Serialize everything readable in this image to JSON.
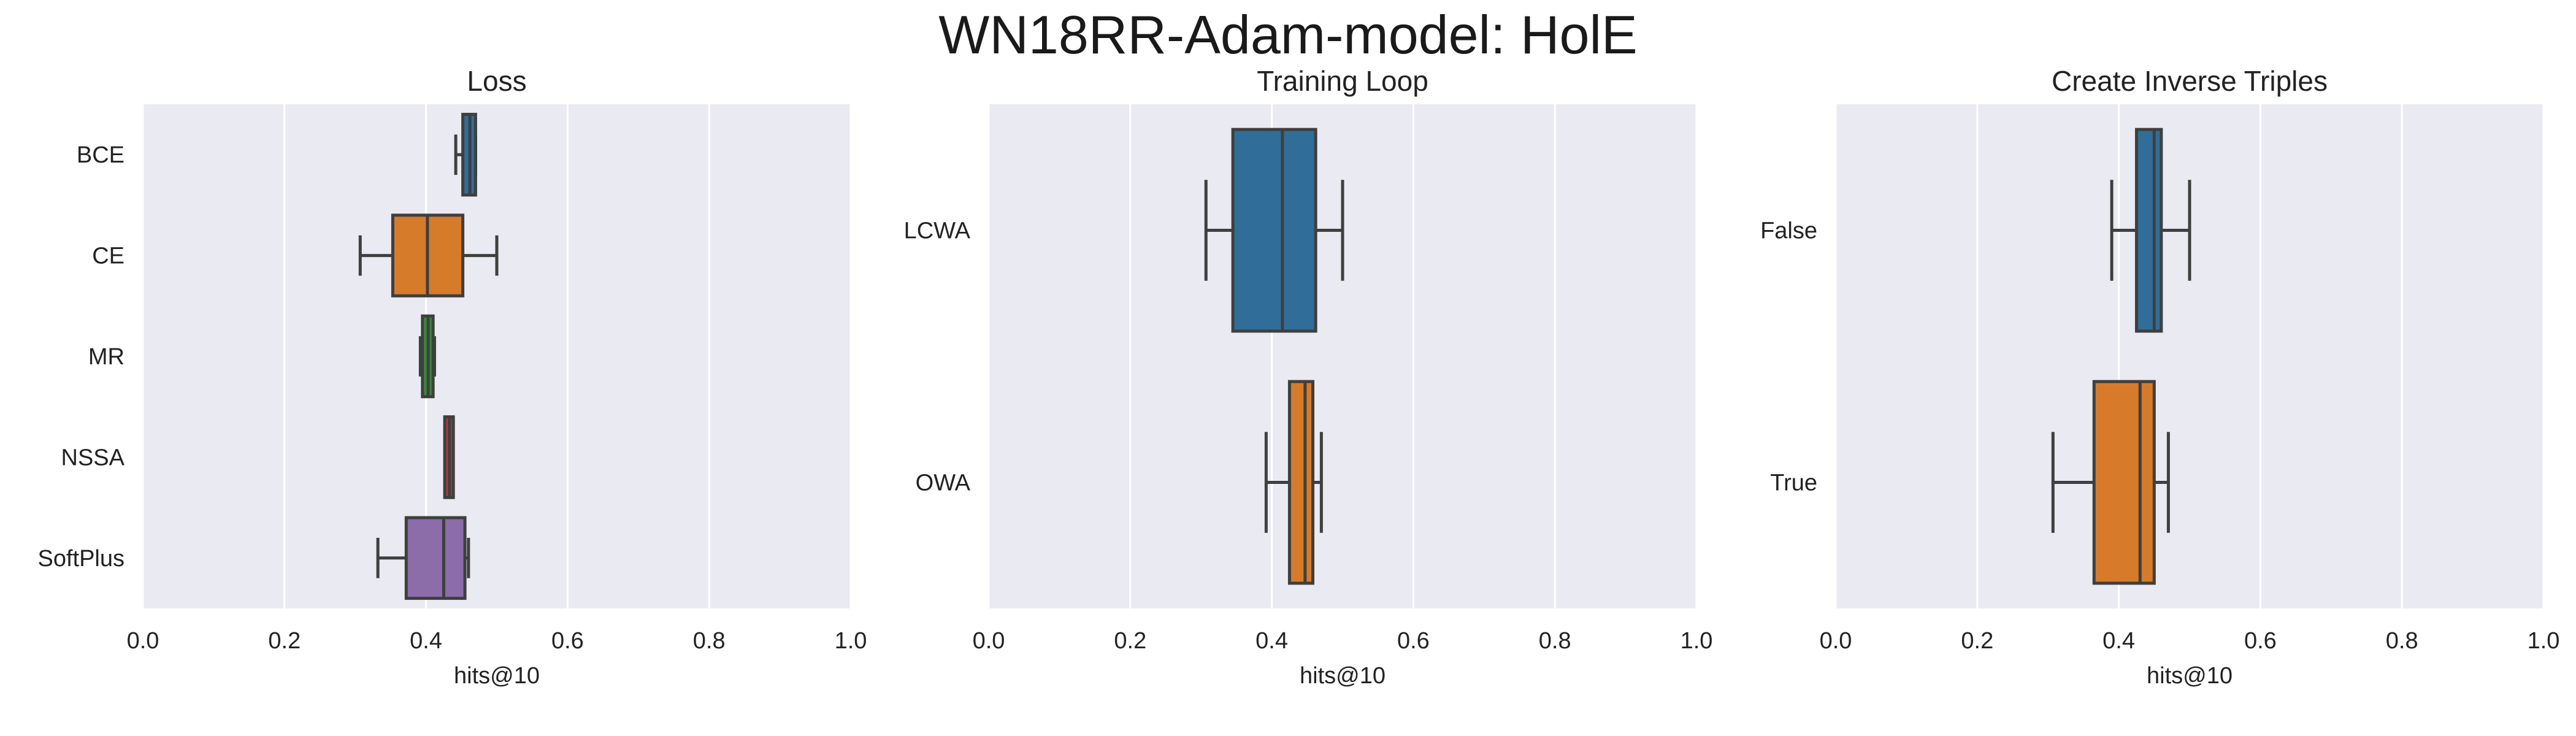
{
  "figure": {
    "title": "WN18RR-Adam-model: HolE"
  },
  "chart_data": [
    {
      "type": "box",
      "title": "Loss",
      "xlabel": "hits@10",
      "ylabel": "",
      "xlim": [
        0,
        1
      ],
      "xticks": [
        "0.0",
        "0.2",
        "0.4",
        "0.6",
        "0.8",
        "1.0"
      ],
      "grid": true,
      "orientation": "horizontal",
      "categories": [
        "BCE",
        "CE",
        "MR",
        "NSSA",
        "SoftPlus"
      ],
      "boxes": [
        {
          "whislo": 0.442,
          "q1": 0.452,
          "med": 0.462,
          "q3": 0.47,
          "whishi": 0.47,
          "color": "#3274a1"
        },
        {
          "whislo": 0.307,
          "q1": 0.353,
          "med": 0.402,
          "q3": 0.452,
          "whishi": 0.5,
          "color": "#e1812c"
        },
        {
          "whislo": 0.392,
          "q1": 0.395,
          "med": 0.403,
          "q3": 0.41,
          "whishi": 0.412,
          "color": "#3a923a"
        },
        {
          "whislo": 0.428,
          "q1": 0.43,
          "med": 0.433,
          "q3": 0.435,
          "whishi": 0.437,
          "color": "#c03d3e"
        },
        {
          "whislo": 0.332,
          "q1": 0.372,
          "med": 0.425,
          "q3": 0.455,
          "whishi": 0.46,
          "color": "#9372b2"
        }
      ]
    },
    {
      "type": "box",
      "title": "Training Loop",
      "xlabel": "hits@10",
      "ylabel": "",
      "xlim": [
        0,
        1
      ],
      "xticks": [
        "0.0",
        "0.2",
        "0.4",
        "0.6",
        "0.8",
        "1.0"
      ],
      "grid": true,
      "orientation": "horizontal",
      "categories": [
        "LCWA",
        "OWA"
      ],
      "boxes": [
        {
          "whislo": 0.307,
          "q1": 0.345,
          "med": 0.415,
          "q3": 0.462,
          "whishi": 0.5,
          "color": "#3274a1"
        },
        {
          "whislo": 0.392,
          "q1": 0.425,
          "med": 0.447,
          "q3": 0.458,
          "whishi": 0.47,
          "color": "#e1812c"
        }
      ]
    },
    {
      "type": "box",
      "title": "Create Inverse Triples",
      "xlabel": "hits@10",
      "ylabel": "",
      "xlim": [
        0,
        1
      ],
      "xticks": [
        "0.0",
        "0.2",
        "0.4",
        "0.6",
        "0.8",
        "1.0"
      ],
      "grid": true,
      "orientation": "horizontal",
      "categories": [
        "False",
        "True"
      ],
      "boxes": [
        {
          "whislo": 0.39,
          "q1": 0.425,
          "med": 0.45,
          "q3": 0.46,
          "whishi": 0.5,
          "color": "#3274a1"
        },
        {
          "whislo": 0.307,
          "q1": 0.365,
          "med": 0.43,
          "q3": 0.45,
          "whishi": 0.47,
          "color": "#e1812c"
        }
      ]
    }
  ]
}
